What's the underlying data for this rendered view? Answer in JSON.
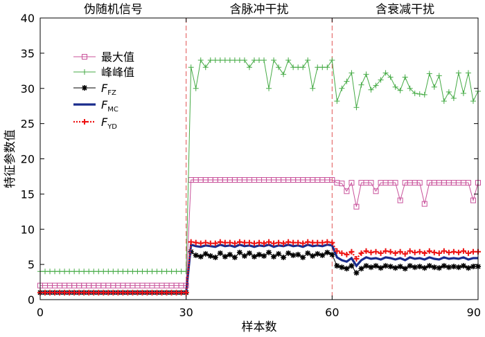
{
  "chart_data": {
    "type": "line",
    "title": "",
    "xlabel": "样本数",
    "ylabel": "特征参数值",
    "xlim": [
      0,
      90
    ],
    "ylim": [
      0,
      40
    ],
    "xticks": [
      0,
      30,
      60,
      90
    ],
    "yticks": [
      0,
      5,
      10,
      15,
      20,
      25,
      30,
      35,
      40
    ],
    "grid": false,
    "legend_position": "top-left",
    "segments": [
      {
        "label": "伪随机信号",
        "x_start": 0,
        "x_end": 30
      },
      {
        "label": "含脉冲干扰",
        "x_start": 30,
        "x_end": 60
      },
      {
        "label": "含衰减干扰",
        "x_start": 60,
        "x_end": 90
      }
    ],
    "divider_x": [
      30,
      60
    ],
    "divider_color": "#e05050",
    "x": [
      0,
      1,
      2,
      3,
      4,
      5,
      6,
      7,
      8,
      9,
      10,
      11,
      12,
      13,
      14,
      15,
      16,
      17,
      18,
      19,
      20,
      21,
      22,
      23,
      24,
      25,
      26,
      27,
      28,
      29,
      30,
      31,
      32,
      33,
      34,
      35,
      36,
      37,
      38,
      39,
      40,
      41,
      42,
      43,
      44,
      45,
      46,
      47,
      48,
      49,
      50,
      51,
      52,
      53,
      54,
      55,
      56,
      57,
      58,
      59,
      60,
      61,
      62,
      63,
      64,
      65,
      66,
      67,
      68,
      69,
      70,
      71,
      72,
      73,
      74,
      75,
      76,
      77,
      78,
      79,
      80,
      81,
      82,
      83,
      84,
      85,
      86,
      87,
      88,
      89,
      90
    ],
    "series": [
      {
        "name": "最大值",
        "color": "#c8509a",
        "marker": "square",
        "values": [
          2,
          2,
          2,
          2,
          2,
          2,
          2,
          2,
          2,
          2,
          2,
          2,
          2,
          2,
          2,
          2,
          2,
          2,
          2,
          2,
          2,
          2,
          2,
          2,
          2,
          2,
          2,
          2,
          2,
          2,
          2,
          17,
          17,
          17,
          17,
          17,
          17,
          17,
          17,
          17,
          17,
          17,
          17,
          17,
          17,
          17,
          17,
          17,
          17,
          17,
          17,
          17,
          17,
          17,
          17,
          17,
          17,
          17,
          17,
          17,
          17,
          16.6,
          16.5,
          15.4,
          16.6,
          13.2,
          16.6,
          16.6,
          16.6,
          15.4,
          16.6,
          16.6,
          16.6,
          16.6,
          14.1,
          16.6,
          16.6,
          16.6,
          16.6,
          13.6,
          16.6,
          16.6,
          16.6,
          16.6,
          16.6,
          16.6,
          16.6,
          16.6,
          16.6,
          14.1,
          16.6
        ]
      },
      {
        "name": "峰峰值",
        "color": "#44aa44",
        "marker": "plus",
        "values": [
          4,
          4,
          4,
          4,
          4,
          4,
          4,
          4,
          4,
          4,
          4,
          4,
          4,
          4,
          4,
          4,
          4,
          4,
          4,
          4,
          4,
          4,
          4,
          4,
          4,
          4,
          4,
          4,
          4,
          4,
          4,
          33,
          30,
          34,
          33,
          34,
          34,
          34,
          34,
          34,
          34,
          34,
          34,
          33,
          34,
          34,
          34,
          30,
          34,
          33,
          32,
          34,
          33,
          33,
          33,
          34,
          30,
          33,
          33,
          33,
          34,
          28.2,
          30,
          31,
          32.2,
          27.3,
          30.5,
          32,
          29.8,
          30.4,
          31.2,
          32.2,
          31.6,
          30.2,
          29.7,
          31.6,
          30,
          29.3,
          29.2,
          29.1,
          32.1,
          30.2,
          31.8,
          28.2,
          29.5,
          28.6,
          32.2,
          29.3,
          32.2,
          28.2,
          29.6
        ]
      },
      {
        "name": "FFZ",
        "name_main": "F",
        "name_sub": "FZ",
        "color": "#000000",
        "marker": "star",
        "values": [
          1,
          1,
          1,
          1,
          1,
          1,
          1,
          1,
          1,
          1,
          1,
          1,
          1,
          1,
          1,
          1,
          1,
          1,
          1,
          1,
          1,
          1,
          1,
          1,
          1,
          1,
          1,
          1,
          1,
          1,
          1,
          6.8,
          6.3,
          6.1,
          6.5,
          6.2,
          6,
          6.6,
          6.1,
          6.4,
          6,
          6.7,
          6.2,
          6.6,
          6.1,
          6.4,
          6.2,
          6.7,
          6.1,
          6.5,
          6,
          6.6,
          6.3,
          6.4,
          6,
          6.6,
          6.2,
          6.5,
          6.3,
          6.7,
          6.4,
          4.8,
          4.6,
          4.4,
          4.8,
          3.8,
          4.4,
          4.8,
          4.6,
          4.8,
          4.5,
          4.8,
          4.7,
          4.5,
          4.7,
          4.4,
          4.8,
          4.6,
          4.7,
          4.5,
          4.8,
          4.6,
          4.5,
          4.8,
          4.6,
          4.7,
          4.6,
          4.8,
          4.5,
          4.7,
          4.7
        ]
      },
      {
        "name": "FMC",
        "name_main": "F",
        "name_sub": "MC",
        "color": "#1a2c8c",
        "marker": "none",
        "values": [
          1,
          1,
          1,
          1,
          1,
          1,
          1,
          1,
          1,
          1,
          1,
          1,
          1,
          1,
          1,
          1,
          1,
          1,
          1,
          1,
          1,
          1,
          1,
          1,
          1,
          1,
          1,
          1,
          1,
          1,
          1,
          7.8,
          7.6,
          7.5,
          7.7,
          7.6,
          7.5,
          7.8,
          7.6,
          7.7,
          7.5,
          7.8,
          7.6,
          7.7,
          7.5,
          7.7,
          7.6,
          7.8,
          7.5,
          7.7,
          7.6,
          7.8,
          7.6,
          7.7,
          7.5,
          7.8,
          7.6,
          7.7,
          7.6,
          7.8,
          7.7,
          6,
          5.6,
          5.4,
          5.9,
          4.8,
          5.6,
          6,
          5.8,
          5.9,
          5.7,
          6,
          5.9,
          5.7,
          5.9,
          5.6,
          6,
          5.8,
          5.9,
          5.7,
          6,
          5.8,
          5.7,
          6,
          5.8,
          5.9,
          5.8,
          6,
          5.7,
          5.9,
          5.9
        ]
      },
      {
        "name": "FYD",
        "name_main": "F",
        "name_sub": "YD",
        "color": "#ee1111",
        "marker": "plus-dotted",
        "values": [
          1,
          1,
          1,
          1,
          1,
          1,
          1,
          1,
          1,
          1,
          1,
          1,
          1,
          1,
          1,
          1,
          1,
          1,
          1,
          1,
          1,
          1,
          1,
          1,
          1,
          1,
          1,
          1,
          1,
          1,
          1,
          8.2,
          8.1,
          8,
          8.1,
          8,
          8,
          8.2,
          8.1,
          8.1,
          8,
          8.2,
          8.1,
          8.1,
          8,
          8.1,
          8,
          8.2,
          8,
          8.1,
          8,
          8.2,
          8.1,
          8.1,
          8,
          8.2,
          8.1,
          8.1,
          8.1,
          8.2,
          8.1,
          6.9,
          6.6,
          6.4,
          6.8,
          5.8,
          6.6,
          6.9,
          6.7,
          6.8,
          6.6,
          6.9,
          6.8,
          6.6,
          6.8,
          6.5,
          6.9,
          6.7,
          6.8,
          6.6,
          6.9,
          6.7,
          6.6,
          6.9,
          6.7,
          6.8,
          6.7,
          6.9,
          6.6,
          6.8,
          6.8
        ]
      }
    ]
  }
}
